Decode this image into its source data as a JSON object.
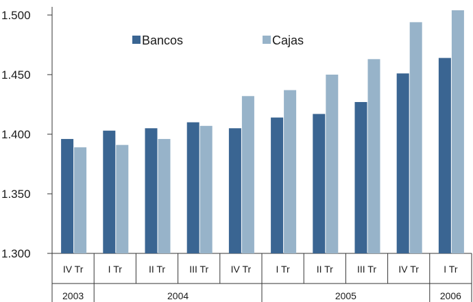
{
  "chart_data": {
    "type": "bar",
    "categories": [
      "IV Tr",
      "I Tr",
      "II Tr",
      "III Tr",
      "IV Tr",
      "I Tr",
      "II Tr",
      "III Tr",
      "IV Tr",
      "I Tr"
    ],
    "years": [
      {
        "label": "2003",
        "span": 1
      },
      {
        "label": "2004",
        "span": 4
      },
      {
        "label": "2005",
        "span": 4
      },
      {
        "label": "2006",
        "span": 1
      }
    ],
    "series": [
      {
        "name": "Bancos",
        "color": "#3a6592",
        "values": [
          1.396,
          1.403,
          1.405,
          1.41,
          1.405,
          1.414,
          1.417,
          1.427,
          1.451,
          1.464
        ]
      },
      {
        "name": "Cajas",
        "color": "#97b3c9",
        "values": [
          1.389,
          1.391,
          1.396,
          1.407,
          1.432,
          1.437,
          1.45,
          1.463,
          1.494,
          1.504
        ]
      }
    ],
    "yticks": [
      "1.300",
      "1.350",
      "1.400",
      "1.450",
      "1.500"
    ],
    "ytick_values": [
      1.3,
      1.35,
      1.4,
      1.45,
      1.5
    ],
    "ylim": [
      1.3,
      1.504
    ],
    "grid": false,
    "legend": "top-center",
    "title": "",
    "xlabel": "",
    "ylabel": ""
  }
}
